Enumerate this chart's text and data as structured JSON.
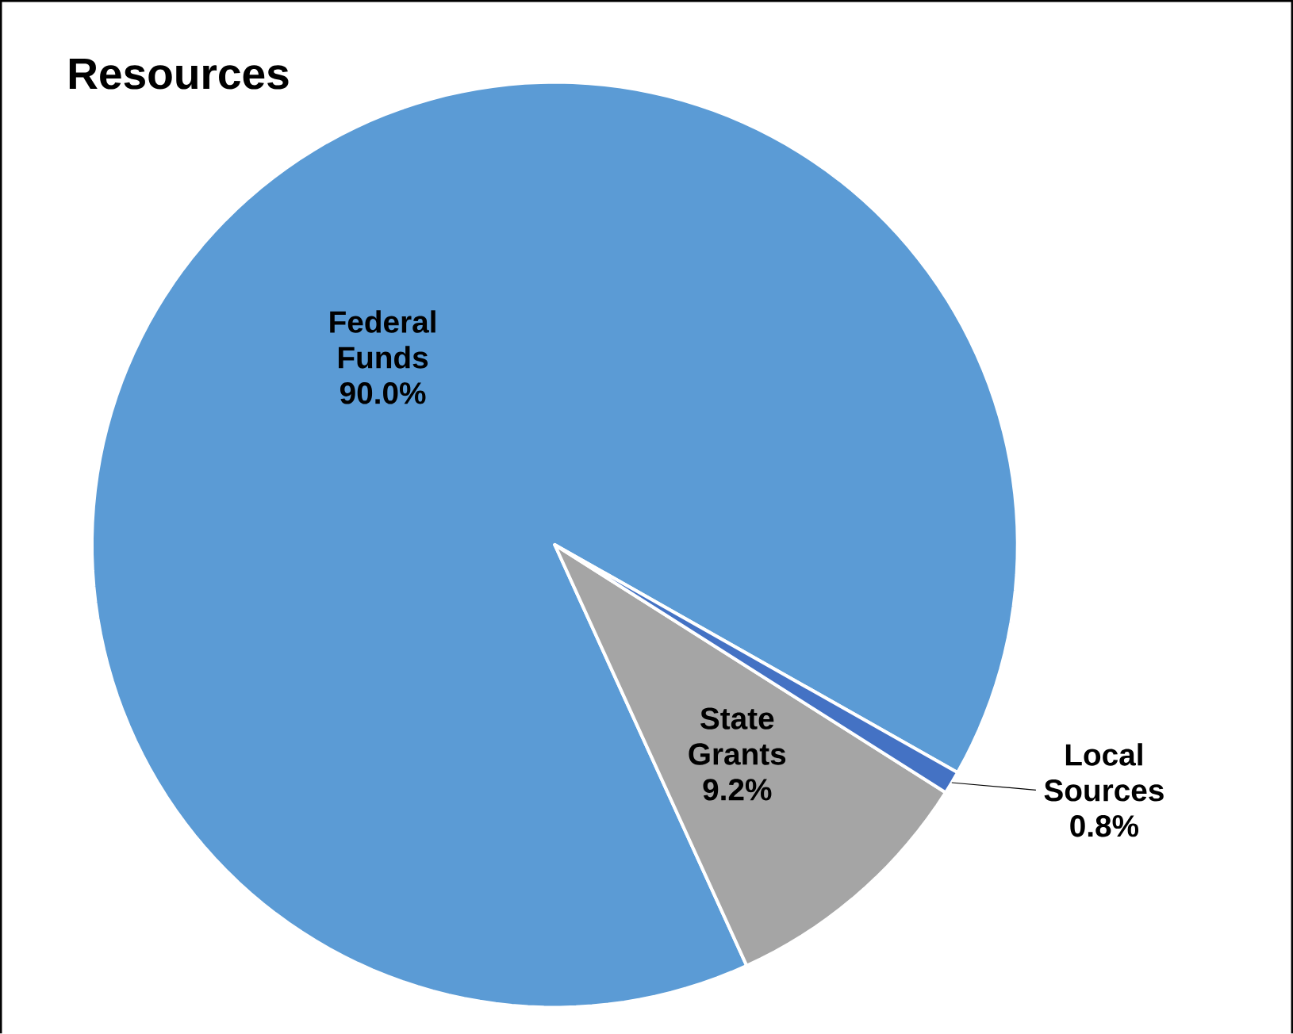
{
  "chart_data": {
    "type": "pie",
    "title": "Resources",
    "categories": [
      "Federal Funds",
      "State Grants",
      "Local Sources"
    ],
    "values": [
      90.0,
      9.2,
      0.8
    ],
    "colors": [
      "#5b9bd5",
      "#a5a5a5",
      "#4472c4"
    ],
    "value_labels": [
      "90.0%",
      "9.2%",
      "0.8%"
    ]
  }
}
